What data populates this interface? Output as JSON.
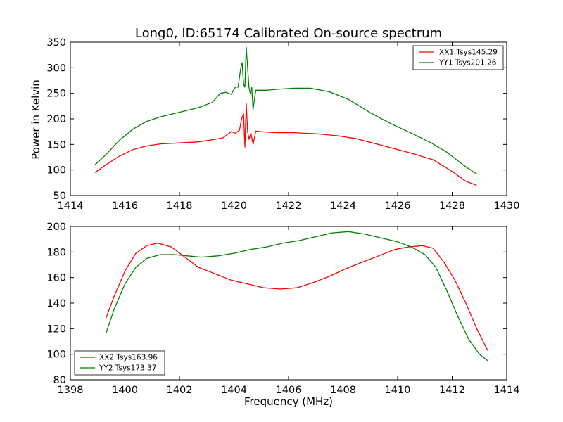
{
  "chart_data": [
    {
      "type": "line",
      "title": "Long0, ID:65174 Calibrated On-source spectrum",
      "xlabel": "",
      "ylabel": "Power in Kelvin",
      "xlim": [
        1414,
        1430
      ],
      "ylim": [
        50,
        350
      ],
      "xticks": [
        1414,
        1416,
        1418,
        1420,
        1422,
        1424,
        1426,
        1428,
        1430
      ],
      "yticks": [
        50,
        100,
        150,
        200,
        250,
        300,
        350
      ],
      "legend_position": "top-right",
      "grid": false,
      "series": [
        {
          "name": "XX1 Tsys145.29",
          "color": "#ff0000",
          "x": [
            1414.9,
            1415.3,
            1415.8,
            1416.3,
            1416.8,
            1417.3,
            1418.0,
            1418.7,
            1419.3,
            1419.6,
            1419.9,
            1420.05,
            1420.2,
            1420.28,
            1420.35,
            1420.4,
            1420.45,
            1420.5,
            1420.55,
            1420.62,
            1420.7,
            1420.8,
            1421.2,
            1421.6,
            1422.2,
            1423.0,
            1423.8,
            1424.5,
            1425.5,
            1426.5,
            1427.3,
            1428.0,
            1428.5,
            1428.9
          ],
          "y": [
            95,
            110,
            127,
            140,
            147,
            151,
            153,
            155,
            160,
            163,
            175,
            172,
            178,
            200,
            210,
            145,
            230,
            175,
            160,
            172,
            150,
            176,
            174,
            173,
            173,
            171,
            167,
            161,
            147,
            133,
            120,
            97,
            78,
            70
          ]
        },
        {
          "name": "YY1 Tsys201.26",
          "color": "#008000",
          "x": [
            1414.9,
            1415.3,
            1415.8,
            1416.3,
            1416.8,
            1417.3,
            1418.0,
            1418.7,
            1419.2,
            1419.5,
            1419.7,
            1419.9,
            1420.05,
            1420.15,
            1420.25,
            1420.3,
            1420.35,
            1420.4,
            1420.45,
            1420.5,
            1420.55,
            1420.6,
            1420.65,
            1420.7,
            1420.8,
            1421.2,
            1421.6,
            1422.2,
            1422.8,
            1423.5,
            1424.2,
            1425.0,
            1425.7,
            1426.5,
            1427.2,
            1427.8,
            1428.4,
            1428.9
          ],
          "y": [
            110,
            130,
            158,
            180,
            195,
            204,
            213,
            222,
            232,
            250,
            252,
            248,
            262,
            262,
            300,
            310,
            268,
            262,
            340,
            300,
            262,
            250,
            262,
            218,
            256,
            256,
            258,
            260,
            260,
            253,
            238,
            212,
            192,
            172,
            154,
            135,
            110,
            92
          ]
        }
      ]
    },
    {
      "type": "line",
      "title": "",
      "xlabel": "Frequency (MHz)",
      "ylabel": "",
      "xlim": [
        1398,
        1414
      ],
      "ylim": [
        80,
        200
      ],
      "xticks": [
        1398,
        1400,
        1402,
        1404,
        1406,
        1408,
        1410,
        1412,
        1414
      ],
      "yticks": [
        80,
        100,
        120,
        140,
        160,
        180,
        200
      ],
      "legend_position": "bottom-left",
      "grid": false,
      "series": [
        {
          "name": "XX2 Tsys163.96",
          "color": "#ff0000",
          "x": [
            1399.3,
            1399.6,
            1400.0,
            1400.4,
            1400.8,
            1401.2,
            1401.7,
            1402.2,
            1402.7,
            1403.3,
            1403.9,
            1404.5,
            1405.1,
            1405.7,
            1406.3,
            1406.9,
            1407.5,
            1408.1,
            1408.7,
            1409.3,
            1409.9,
            1410.4,
            1410.9,
            1411.3,
            1411.7,
            1412.1,
            1412.5,
            1412.9,
            1413.3
          ],
          "y": [
            128,
            145,
            165,
            179,
            185,
            187,
            184,
            176,
            168,
            163,
            158,
            155,
            152,
            151,
            152,
            156,
            161,
            167,
            172,
            177,
            182,
            184,
            185,
            183,
            172,
            158,
            140,
            120,
            103
          ]
        },
        {
          "name": "YY2 Tsys173.37",
          "color": "#008000",
          "x": [
            1399.3,
            1399.6,
            1400.0,
            1400.4,
            1400.8,
            1401.3,
            1401.8,
            1402.3,
            1402.8,
            1403.4,
            1404.0,
            1404.6,
            1405.2,
            1405.8,
            1406.4,
            1407.0,
            1407.6,
            1408.2,
            1408.8,
            1409.4,
            1410.0,
            1410.5,
            1411.0,
            1411.4,
            1411.8,
            1412.2,
            1412.6,
            1413.0,
            1413.3
          ],
          "y": [
            116,
            135,
            155,
            168,
            175,
            178,
            178,
            177,
            176,
            177,
            179,
            182,
            184,
            187,
            189,
            192,
            195,
            196,
            194,
            191,
            188,
            184,
            178,
            168,
            150,
            130,
            112,
            100,
            95
          ]
        }
      ]
    }
  ]
}
